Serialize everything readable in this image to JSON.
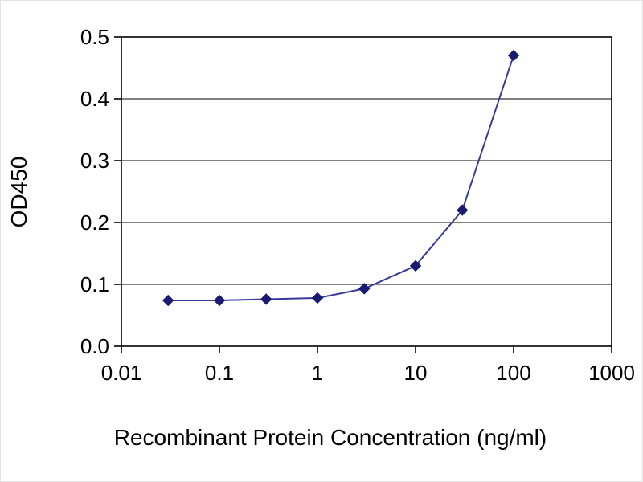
{
  "chart_data": {
    "type": "line",
    "x": [
      0.03,
      0.1,
      0.3,
      1,
      3,
      10,
      30,
      100
    ],
    "y": [
      0.074,
      0.074,
      0.076,
      0.078,
      0.093,
      0.13,
      0.22,
      0.47
    ],
    "title": "",
    "xlabel": "Recombinant Protein Concentration (ng/ml)",
    "ylabel": "OD450",
    "xscale": "log",
    "xlim": [
      0.01,
      1000
    ],
    "ylim": [
      0,
      0.5
    ],
    "xticks": [
      "0.01",
      "0.1",
      "1",
      "10",
      "100",
      "1000"
    ],
    "xtick_values": [
      0.01,
      0.1,
      1,
      10,
      100,
      1000
    ],
    "yticks": [
      "0.0",
      "0.1",
      "0.2",
      "0.3",
      "0.4",
      "0.5"
    ],
    "ytick_values": [
      0,
      0.1,
      0.2,
      0.3,
      0.4,
      0.5
    ],
    "grid": "horizontal",
    "legend_position": "none",
    "line_color": "#3a3a99",
    "marker": "diamond",
    "marker_color": "#1a1a70",
    "axis_color": "#000000",
    "grid_color": "#000000",
    "background_color": "#ffffff"
  }
}
